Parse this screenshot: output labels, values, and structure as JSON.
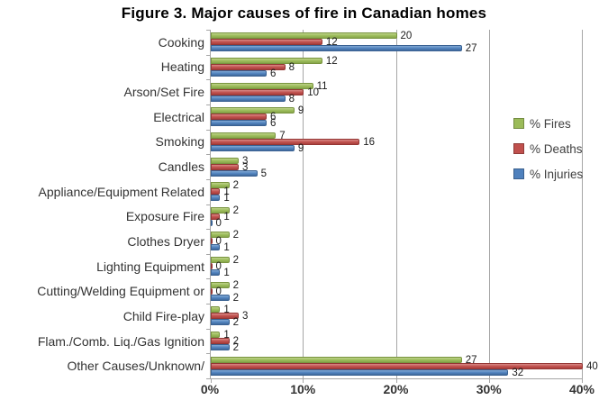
{
  "title": "Figure 3. Major causes of fire in Canadian homes",
  "chart_data": {
    "type": "bar",
    "orientation": "horizontal",
    "title": "Figure 3. Major causes of fire in Canadian homes",
    "categories": [
      "Cooking",
      "Heating",
      "Arson/Set Fire",
      "Electrical",
      "Smoking",
      "Candles",
      "Appliance/Equipment Related",
      "Exposure Fire",
      "Clothes Dryer",
      "Lighting Equipment",
      "Cutting/Welding Equipment or",
      "Child Fire-play",
      "Flam./Comb. Liq./Gas Ignition",
      "Other Causes/Unknown/"
    ],
    "series": [
      {
        "name": "% Fires",
        "color": "#9BBB59",
        "values": [
          20,
          12,
          11,
          9,
          7,
          3,
          2,
          2,
          2,
          2,
          2,
          1,
          1,
          27
        ]
      },
      {
        "name": "% Deaths",
        "color": "#C0504D",
        "values": [
          12,
          8,
          10,
          6,
          16,
          3,
          1,
          1,
          0,
          0,
          0,
          3,
          2,
          40
        ]
      },
      {
        "name": "% Injuries",
        "color": "#4F81BD",
        "values": [
          27,
          6,
          8,
          6,
          9,
          5,
          1,
          0,
          1,
          1,
          2,
          2,
          2,
          32
        ]
      }
    ],
    "x_tick_labels": [
      "0%",
      "10%",
      "20%",
      "30%",
      "40%"
    ],
    "xlim": [
      0,
      40
    ],
    "grid": true,
    "legend_position": "right",
    "data_labels": true,
    "colors": {
      "fires": "#9BBB59",
      "deaths": "#C0504D",
      "injuries": "#4F81BD",
      "axis": "#A6A6A6",
      "text": "#333333"
    }
  }
}
